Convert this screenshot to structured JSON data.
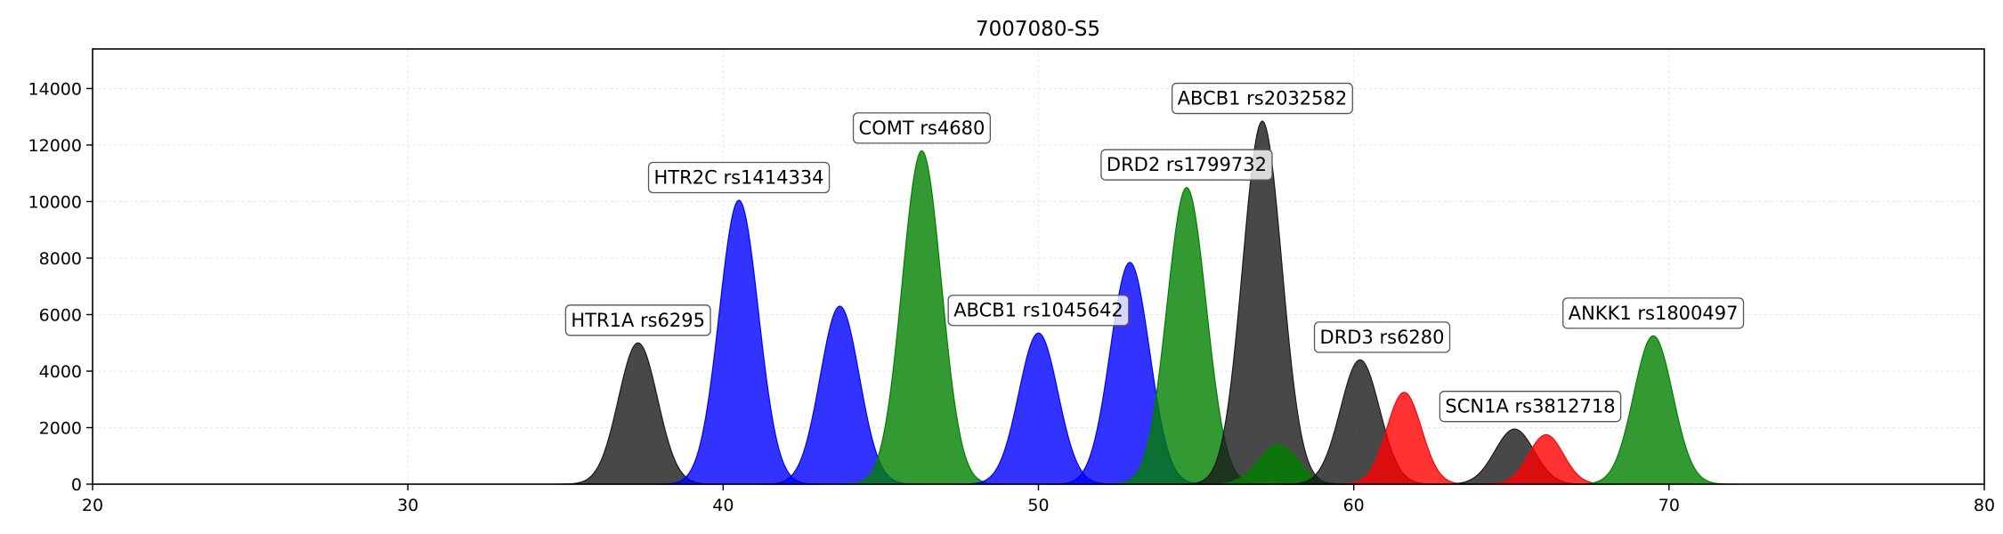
{
  "chart_data": {
    "type": "area",
    "title": "7007080-S5",
    "xlabel": "",
    "ylabel": "",
    "xlim": [
      20,
      80
    ],
    "ylim": [
      0,
      15400
    ],
    "xticks": [
      20,
      30,
      40,
      50,
      60,
      70,
      80
    ],
    "yticks": [
      0,
      2000,
      4000,
      6000,
      8000,
      10000,
      12000,
      14000
    ],
    "grid": true,
    "colors": {
      "black": "#1a1a1a",
      "blue": "#0000ff",
      "green": "#008000",
      "red": "#ff0000"
    },
    "peaks": [
      {
        "x": 37.3,
        "height": 5000,
        "sigma": 0.62,
        "color": "black"
      },
      {
        "x": 40.5,
        "height": 10050,
        "sigma": 0.62,
        "color": "blue"
      },
      {
        "x": 43.7,
        "height": 6300,
        "sigma": 0.62,
        "color": "blue"
      },
      {
        "x": 46.3,
        "height": 11800,
        "sigma": 0.62,
        "color": "green"
      },
      {
        "x": 50.0,
        "height": 5350,
        "sigma": 0.62,
        "color": "blue"
      },
      {
        "x": 52.9,
        "height": 7850,
        "sigma": 0.62,
        "color": "blue"
      },
      {
        "x": 54.7,
        "height": 10500,
        "sigma": 0.62,
        "color": "green"
      },
      {
        "x": 57.1,
        "height": 12850,
        "sigma": 0.62,
        "color": "black"
      },
      {
        "x": 57.6,
        "height": 1400,
        "sigma": 0.62,
        "color": "green"
      },
      {
        "x": 60.2,
        "height": 4400,
        "sigma": 0.62,
        "color": "black"
      },
      {
        "x": 61.6,
        "height": 3250,
        "sigma": 0.55,
        "color": "red"
      },
      {
        "x": 65.1,
        "height": 1950,
        "sigma": 0.62,
        "color": "black"
      },
      {
        "x": 66.1,
        "height": 1750,
        "sigma": 0.55,
        "color": "red"
      },
      {
        "x": 69.5,
        "height": 5250,
        "sigma": 0.62,
        "color": "green"
      }
    ],
    "annotations": [
      {
        "text": "HTR1A rs6295",
        "x": 37.3,
        "y": 5800
      },
      {
        "text": "HTR2C rs1414334",
        "x": 40.5,
        "y": 10850
      },
      {
        "text": "COMT rs4680",
        "x": 46.3,
        "y": 12600
      },
      {
        "text": "ABCB1 rs1045642",
        "x": 50.0,
        "y": 6150
      },
      {
        "text": "DRD2 rs1799732",
        "x": 54.7,
        "y": 11300
      },
      {
        "text": "ABCB1 rs2032582",
        "x": 57.1,
        "y": 13650
      },
      {
        "text": "DRD3 rs6280",
        "x": 60.9,
        "y": 5200
      },
      {
        "text": "SCN1A rs3812718",
        "x": 65.6,
        "y": 2750
      },
      {
        "text": "ANKK1 rs1800497",
        "x": 69.5,
        "y": 6050
      }
    ]
  }
}
